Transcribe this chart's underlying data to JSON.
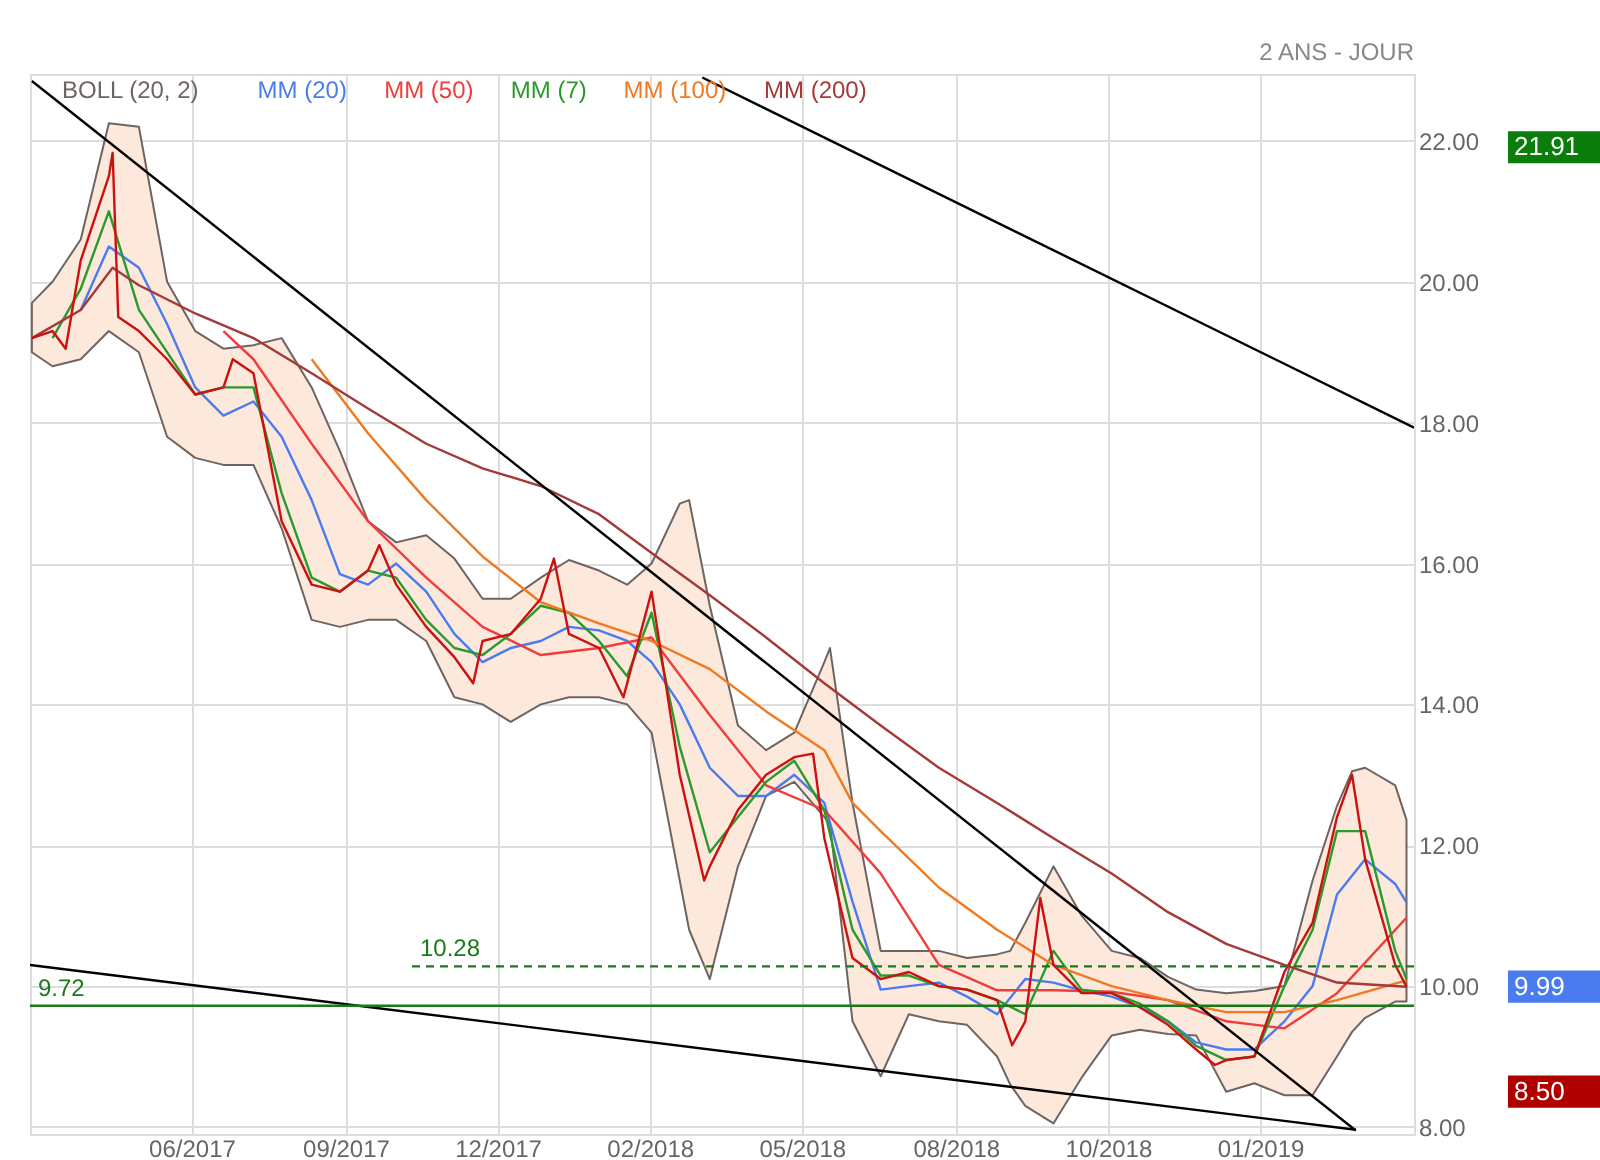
{
  "chart_data": {
    "type": "line",
    "xlim": [
      "2017-04-04",
      "2019-04-11"
    ],
    "xticks": [
      {
        "value": "2017-06-29",
        "label": "06/2017"
      },
      {
        "value": "2017-09-19",
        "label": "09/2017"
      },
      {
        "value": "2017-12-09",
        "label": "12/2017"
      },
      {
        "value": "2018-02-28",
        "label": "02/2018"
      },
      {
        "value": "2018-05-20",
        "label": "05/2018"
      },
      {
        "value": "2018-08-10",
        "label": "08/2018"
      },
      {
        "value": "2018-10-30",
        "label": "10/2018"
      },
      {
        "value": "2019-01-19",
        "label": "01/2019"
      }
    ],
    "ylim": [
      7.9,
      22.95
    ],
    "yticks": [
      {
        "value": 8,
        "label": "8.00"
      },
      {
        "value": 10,
        "label": "10.00"
      },
      {
        "value": 12,
        "label": "12.00"
      },
      {
        "value": 14,
        "label": "14.00"
      },
      {
        "value": 16,
        "label": "16.00"
      },
      {
        "value": 18,
        "label": "18.00"
      },
      {
        "value": 20,
        "label": "20.00"
      },
      {
        "value": 22,
        "label": "22.00"
      }
    ],
    "grid": true,
    "legend": "top left",
    "series": [
      {
        "name": "BOLL (20, 2)",
        "type": "area",
        "color": "#6e6461",
        "values": [
          null,
          null,
          null,
          null,
          null,
          null,
          null,
          null,
          null,
          null,
          null,
          null,
          null,
          null,
          null,
          null,
          null,
          null,
          null,
          null,
          null,
          null,
          null,
          null,
          null,
          null,
          null,
          null,
          null,
          null,
          null,
          null,
          null,
          null,
          null,
          null,
          null,
          null,
          null,
          null,
          null,
          null,
          null,
          null,
          null,
          null,
          null,
          null,
          null,
          null,
          null,
          null,
          null,
          null
        ],
        "x": [
          "2017-04-05",
          "2017-04-16",
          "2017-05-01",
          "2017-05-16",
          "2017-06-01",
          "2017-06-16",
          "2017-07-01",
          "2017-07-16",
          "2017-08-01",
          "2017-08-16",
          "2017-09-01",
          "2017-09-16",
          "2017-10-01",
          "2017-10-16",
          "2017-11-01",
          "2017-11-16",
          "2017-12-01",
          "2017-12-16",
          "2018-01-01",
          "2018-01-16",
          "2018-02-01",
          "2018-02-16",
          "2018-03-01",
          "2018-03-16",
          "2018-03-21",
          "2018-04-01",
          "2018-04-16",
          "2018-05-01",
          "2018-05-16",
          "2018-06-01",
          "2018-06-04",
          "2018-06-16",
          "2018-07-01",
          "2018-07-16",
          "2018-08-01",
          "2018-08-16",
          "2018-09-01",
          "2018-09-08",
          "2018-09-16",
          "2018-10-01",
          "2018-10-16",
          "2018-11-01",
          "2018-11-16",
          "2018-12-01",
          "2018-12-16",
          "2019-01-01",
          "2019-01-16",
          "2019-02-01",
          "2019-02-16",
          "2019-03-01",
          "2019-03-09",
          "2019-03-16",
          "2019-04-01",
          "2019-04-07"
        ],
        "upper": [
          19.7,
          20.0,
          20.6,
          22.25,
          22.2,
          20.0,
          19.3,
          19.05,
          19.1,
          19.2,
          18.5,
          17.6,
          16.6,
          16.3,
          16.4,
          16.07,
          15.5,
          15.5,
          15.8,
          16.05,
          15.9,
          15.7,
          16.0,
          16.85,
          16.9,
          15.4,
          13.7,
          13.35,
          13.6,
          14.6,
          14.8,
          12.6,
          10.5,
          10.5,
          10.5,
          10.4,
          10.45,
          10.5,
          10.9,
          11.7,
          11.0,
          10.5,
          10.4,
          10.13,
          9.95,
          9.9,
          9.93,
          10.0,
          11.5,
          12.56,
          13.05,
          13.1,
          12.85,
          12.36
        ],
        "lower": [
          19.0,
          18.8,
          18.9,
          19.3,
          19.0,
          17.8,
          17.5,
          17.4,
          17.4,
          16.5,
          15.2,
          15.1,
          15.2,
          15.2,
          14.9,
          14.1,
          14.0,
          13.75,
          14.0,
          14.1,
          14.1,
          14.0,
          13.6,
          11.5,
          10.8,
          10.1,
          11.7,
          12.7,
          12.9,
          12.4,
          12.3,
          9.5,
          8.72,
          9.6,
          9.5,
          9.45,
          9.0,
          8.6,
          8.3,
          8.05,
          8.7,
          9.3,
          9.38,
          9.32,
          9.3,
          8.5,
          8.62,
          8.45,
          8.45,
          9.0,
          9.35,
          9.55,
          9.78,
          9.78
        ]
      },
      {
        "name": "MM (20)",
        "color": "#4a7cf0",
        "x": [
          "2017-05-01",
          "2017-05-16",
          "2017-06-01",
          "2017-06-16",
          "2017-07-01",
          "2017-07-16",
          "2017-08-01",
          "2017-08-16",
          "2017-09-01",
          "2017-09-16",
          "2017-10-01",
          "2017-10-16",
          "2017-11-01",
          "2017-11-16",
          "2017-12-01",
          "2017-12-16",
          "2018-01-01",
          "2018-01-16",
          "2018-02-01",
          "2018-02-16",
          "2018-03-01",
          "2018-03-16",
          "2018-04-01",
          "2018-04-16",
          "2018-05-01",
          "2018-05-16",
          "2018-06-01",
          "2018-06-16",
          "2018-07-01",
          "2018-07-16",
          "2018-08-01",
          "2018-08-16",
          "2018-09-01",
          "2018-09-16",
          "2018-10-01",
          "2018-10-16",
          "2018-11-01",
          "2018-11-16",
          "2018-12-01",
          "2018-12-16",
          "2019-01-01",
          "2019-01-16",
          "2019-02-01",
          "2019-02-16",
          "2019-03-01",
          "2019-03-16",
          "2019-04-01",
          "2019-04-07"
        ],
        "values": [
          19.6,
          20.5,
          20.2,
          19.4,
          18.5,
          18.1,
          18.3,
          17.8,
          16.9,
          15.85,
          15.7,
          16.0,
          15.6,
          15.0,
          14.6,
          14.8,
          14.9,
          15.1,
          15.05,
          14.9,
          14.6,
          14.0,
          13.1,
          12.7,
          12.7,
          13.0,
          12.6,
          11.2,
          9.95,
          10.0,
          10.05,
          9.85,
          9.6,
          10.1,
          10.05,
          9.94,
          9.85,
          9.7,
          9.5,
          9.2,
          9.1,
          9.1,
          9.5,
          10.0,
          11.3,
          11.8,
          11.45,
          11.19
        ]
      },
      {
        "name": "MM (50)",
        "color": "#f03c3c",
        "x": [
          "2017-07-16",
          "2017-08-01",
          "2017-09-01",
          "2017-10-01",
          "2017-11-01",
          "2017-12-01",
          "2018-01-01",
          "2018-02-01",
          "2018-03-01",
          "2018-04-01",
          "2018-05-01",
          "2018-06-01",
          "2018-07-01",
          "2018-08-01",
          "2018-09-01",
          "2018-10-01",
          "2018-11-01",
          "2018-12-01",
          "2019-01-01",
          "2019-02-01",
          "2019-03-01",
          "2019-04-07"
        ],
        "values": [
          19.3,
          18.9,
          17.7,
          16.6,
          15.8,
          15.1,
          14.7,
          14.8,
          14.95,
          13.85,
          12.85,
          12.5,
          11.6,
          10.3,
          9.94,
          9.94,
          9.92,
          9.8,
          9.5,
          9.4,
          9.9,
          10.97
        ]
      },
      {
        "name": "MM (7)",
        "color": "#2a9a2a",
        "x": [
          "2017-04-16",
          "2017-05-01",
          "2017-05-16",
          "2017-06-01",
          "2017-06-16",
          "2017-07-01",
          "2017-07-16",
          "2017-08-01",
          "2017-08-16",
          "2017-09-01",
          "2017-09-16",
          "2017-10-01",
          "2017-10-16",
          "2017-11-01",
          "2017-11-16",
          "2017-12-01",
          "2017-12-16",
          "2018-01-01",
          "2018-01-16",
          "2018-02-01",
          "2018-02-16",
          "2018-03-01",
          "2018-03-16",
          "2018-04-01",
          "2018-04-16",
          "2018-05-01",
          "2018-05-16",
          "2018-06-01",
          "2018-06-16",
          "2018-07-01",
          "2018-07-16",
          "2018-08-01",
          "2018-08-16",
          "2018-09-01",
          "2018-09-16",
          "2018-10-01",
          "2018-10-16",
          "2018-11-01",
          "2018-11-16",
          "2018-12-01",
          "2018-12-16",
          "2019-01-01",
          "2019-01-16",
          "2019-02-01",
          "2019-02-16",
          "2019-03-01",
          "2019-03-16",
          "2019-04-01",
          "2019-04-07"
        ],
        "values": [
          19.2,
          19.9,
          21.0,
          19.6,
          19.0,
          18.4,
          18.5,
          18.5,
          17.0,
          15.8,
          15.6,
          15.9,
          15.8,
          15.2,
          14.8,
          14.7,
          15.0,
          15.4,
          15.3,
          14.9,
          14.4,
          15.3,
          13.4,
          11.9,
          12.4,
          12.9,
          13.2,
          12.5,
          10.8,
          10.15,
          10.15,
          10.0,
          9.95,
          9.8,
          9.6,
          10.5,
          9.95,
          9.9,
          9.75,
          9.5,
          9.15,
          8.95,
          9.0,
          10.0,
          10.8,
          12.2,
          12.2,
          10.5,
          10.1
        ]
      },
      {
        "name": "MM (100)",
        "color": "#f07a20",
        "x": [
          "2017-09-01",
          "2017-10-01",
          "2017-11-01",
          "2017-12-01",
          "2018-01-01",
          "2018-02-01",
          "2018-03-01",
          "2018-04-01",
          "2018-05-01",
          "2018-06-01",
          "2018-06-16",
          "2018-07-01",
          "2018-08-01",
          "2018-09-01",
          "2018-10-01",
          "2018-11-01",
          "2018-12-01",
          "2019-01-01",
          "2019-02-01",
          "2019-03-01",
          "2019-04-07"
        ],
        "values": [
          18.9,
          17.85,
          16.9,
          16.1,
          15.45,
          15.15,
          14.9,
          14.5,
          13.9,
          13.35,
          12.6,
          12.2,
          11.4,
          10.8,
          10.3,
          10.0,
          9.8,
          9.63,
          9.63,
          9.8,
          10.08
        ]
      },
      {
        "name": "MM (200)",
        "color": "#a33a3a",
        "x": [
          "2017-04-05",
          "2017-05-01",
          "2017-05-18",
          "2017-06-01",
          "2017-07-01",
          "2017-08-01",
          "2017-09-01",
          "2017-10-01",
          "2017-11-01",
          "2017-12-01",
          "2018-01-01",
          "2018-02-01",
          "2018-03-01",
          "2018-04-01",
          "2018-05-01",
          "2018-06-01",
          "2018-07-01",
          "2018-08-01",
          "2018-09-01",
          "2018-10-01",
          "2018-11-01",
          "2018-12-01",
          "2019-01-01",
          "2019-02-01",
          "2019-03-01",
          "2019-04-07"
        ],
        "values": [
          19.2,
          19.6,
          20.2,
          19.95,
          19.55,
          19.2,
          18.7,
          18.2,
          17.7,
          17.35,
          17.1,
          16.7,
          16.15,
          15.55,
          14.95,
          14.3,
          13.7,
          13.1,
          12.6,
          12.1,
          11.6,
          11.05,
          10.6,
          10.3,
          10.05,
          9.99
        ]
      },
      {
        "color": "#cc1111",
        "x": [
          "2017-04-05",
          "2017-04-16",
          "2017-04-23",
          "2017-05-01",
          "2017-05-16",
          "2017-05-18",
          "2017-05-21",
          "2017-06-01",
          "2017-06-16",
          "2017-07-01",
          "2017-07-16",
          "2017-07-21",
          "2017-08-01",
          "2017-08-16",
          "2017-09-01",
          "2017-09-16",
          "2017-10-01",
          "2017-10-07",
          "2017-10-16",
          "2017-11-01",
          "2017-11-16",
          "2017-11-26",
          "2017-12-01",
          "2017-12-16",
          "2018-01-01",
          "2018-01-08",
          "2018-01-16",
          "2018-02-01",
          "2018-02-14",
          "2018-02-16",
          "2018-03-01",
          "2018-03-16",
          "2018-03-29",
          "2018-04-01",
          "2018-04-16",
          "2018-05-01",
          "2018-05-16",
          "2018-05-26",
          "2018-06-01",
          "2018-06-16",
          "2018-07-01",
          "2018-07-16",
          "2018-08-01",
          "2018-08-16",
          "2018-09-01",
          "2018-09-09",
          "2018-09-16",
          "2018-09-24",
          "2018-10-01",
          "2018-10-16",
          "2018-11-01",
          "2018-11-16",
          "2018-12-01",
          "2018-12-16",
          "2018-12-26",
          "2019-01-01",
          "2019-01-16",
          "2019-02-01",
          "2019-02-16",
          "2019-03-01",
          "2019-03-09",
          "2019-03-16",
          "2019-04-01",
          "2019-04-07"
        ],
        "values": [
          19.2,
          19.3,
          19.05,
          20.3,
          21.5,
          21.83,
          19.5,
          19.3,
          18.9,
          18.4,
          18.5,
          18.9,
          18.7,
          16.6,
          15.7,
          15.6,
          15.9,
          16.26,
          15.7,
          15.1,
          14.67,
          14.3,
          14.9,
          15.0,
          15.5,
          16.07,
          15.0,
          14.8,
          14.1,
          14.3,
          15.6,
          13.0,
          11.5,
          11.7,
          12.5,
          13.0,
          13.25,
          13.3,
          12.1,
          10.4,
          10.1,
          10.2,
          10.0,
          9.95,
          9.8,
          9.16,
          9.5,
          11.25,
          10.3,
          9.9,
          9.9,
          9.7,
          9.45,
          9.1,
          8.88,
          8.95,
          9.0,
          10.2,
          10.9,
          12.4,
          13.0,
          11.8,
          10.3,
          9.99
        ]
      },
      {
        "color": "#000000",
        "x": [
          "2017-04-05",
          "2019-03-11"
        ],
        "values": [
          22.85,
          7.95
        ]
      },
      {
        "color": "#000000",
        "x": [
          "2018-03-28",
          "2019-04-11"
        ],
        "values": [
          22.9,
          17.93
        ]
      },
      {
        "color": "#000000",
        "x": [
          "2017-04-04",
          "2019-03-11"
        ],
        "values": [
          10.3,
          7.96
        ]
      }
    ],
    "ref_lines": [
      {
        "axis": "y",
        "value": 9.72,
        "label": "9.72",
        "color": "#1a7a1a",
        "line_style": "solid"
      },
      {
        "axis": "y",
        "value": 10.28,
        "label": "10.28",
        "color": "#1a7a1a",
        "line_style": "dashed"
      }
    ],
    "annotations": [
      "2 ANS - JOUR",
      "21.91",
      "9.99",
      "8.50"
    ]
  }
}
